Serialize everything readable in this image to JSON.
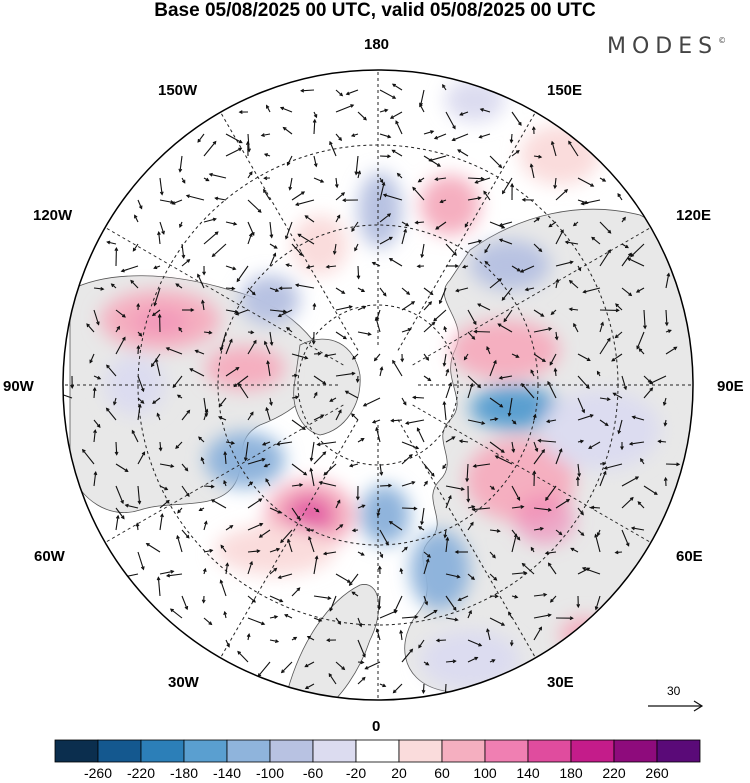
{
  "title": "Base 05/08/2025 00 UTC, valid 05/08/2025 00 UTC",
  "brand": "MODES",
  "brand_mark": "©",
  "longitude_labels": {
    "top": "180",
    "top_left": "150W",
    "top_right": "150E",
    "upper_left": "120W",
    "upper_right": "120E",
    "left": "90W",
    "right": "90E",
    "lower_left": "60W",
    "lower_right": "60E",
    "bottom_left": "30W",
    "bottom_right": "30E",
    "bottom": "0"
  },
  "reference_vector": "30",
  "colorbar": {
    "colors": [
      "#0b2e4e",
      "#14588f",
      "#2c7fb8",
      "#5a9fd0",
      "#8fb4dc",
      "#b8c2e2",
      "#dcdcf0",
      "#ffffff",
      "#fadcdc",
      "#f5afc0",
      "#f07fb2",
      "#e04c9e",
      "#c41c8a",
      "#8e0b7c",
      "#5a0a78"
    ],
    "labels": [
      "-260",
      "-220",
      "-180",
      "-140",
      "-100",
      "-60",
      "-20",
      "20",
      "60",
      "100",
      "140",
      "180",
      "220",
      "260"
    ]
  }
}
